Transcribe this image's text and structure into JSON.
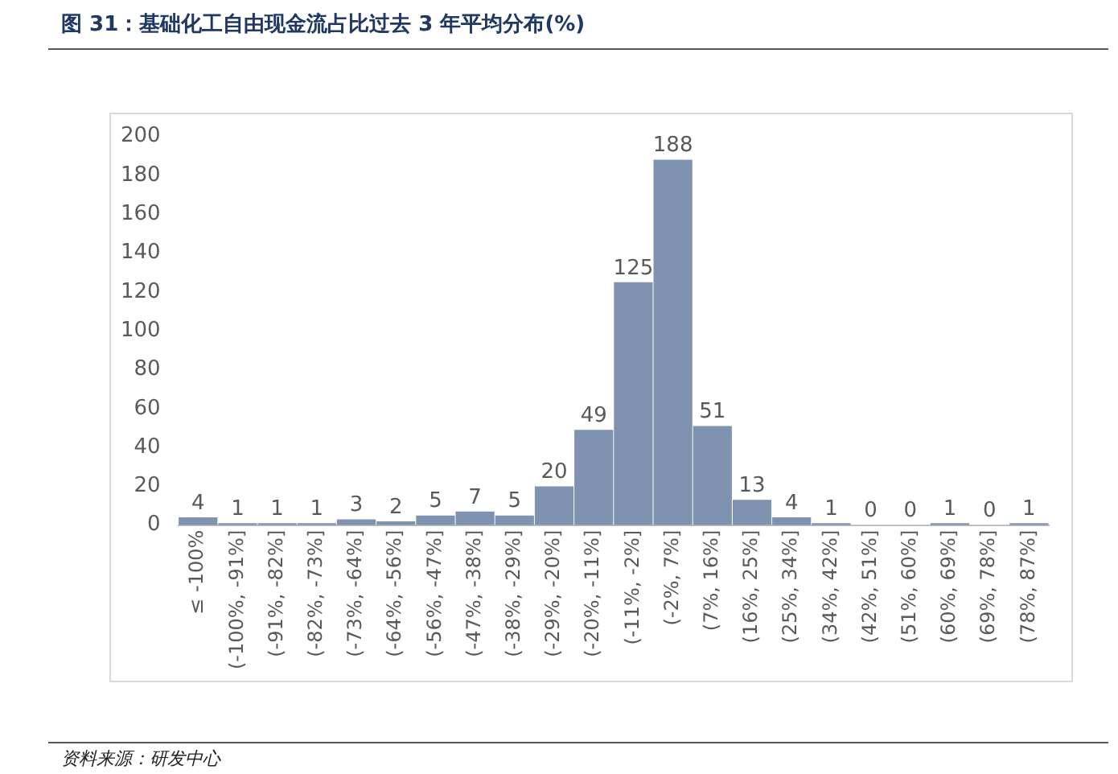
{
  "chart_data": {
    "type": "bar",
    "title": "图 31：基础化工自由现金流占比过去 3 年平均分布(%)",
    "categories": [
      "≤ -100%",
      "(-100%, -91%]",
      "(-91%, -82%]",
      "(-82%, -73%]",
      "(-73%, -64%]",
      "(-64%, -56%]",
      "(-56%, -47%]",
      "(-47%, -38%]",
      "(-38%, -29%]",
      "(-29%, -20%]",
      "(-20%, -11%]",
      "(-11%, -2%]",
      "(-2%, 7%]",
      "(7%, 16%]",
      "(16%, 25%]",
      "(25%, 34%]",
      "(34%, 42%]",
      "(42%, 51%]",
      "(51%, 60%]",
      "(60%, 69%]",
      "(69%, 78%]",
      "(78%, 87%]"
    ],
    "values": [
      4,
      1,
      1,
      1,
      3,
      2,
      5,
      7,
      5,
      20,
      49,
      125,
      188,
      51,
      13,
      4,
      1,
      0,
      0,
      1,
      0,
      1
    ],
    "color": "#7f93b0",
    "ylim": [
      0,
      200
    ],
    "yticks": [
      0,
      20,
      40,
      60,
      80,
      100,
      120,
      140,
      160,
      180,
      200
    ],
    "grid": false,
    "legend": false,
    "data_labels": true,
    "annotations": [
      "资料来源：研发中心"
    ]
  }
}
